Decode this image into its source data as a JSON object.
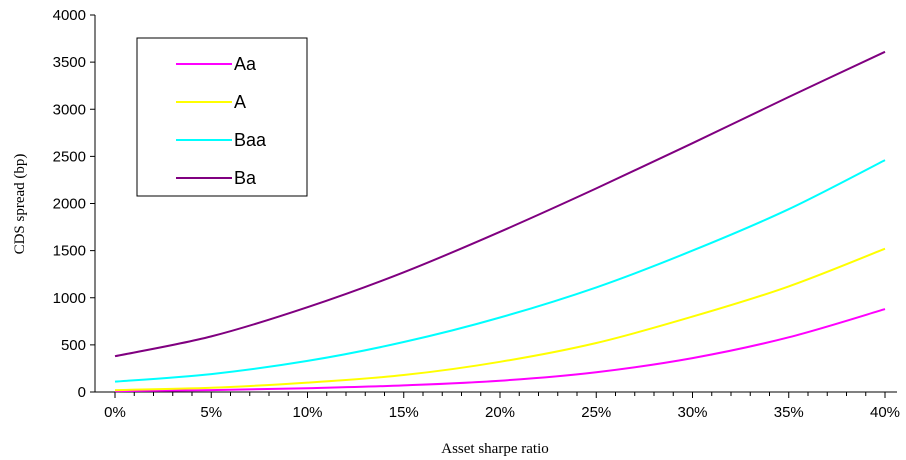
{
  "chart_data": {
    "type": "line",
    "xlabel": "Asset sharpe ratio",
    "ylabel": "CDS spread (bp)",
    "x": [
      0,
      0.05,
      0.1,
      0.15,
      0.2,
      0.25,
      0.3,
      0.35,
      0.4
    ],
    "x_tick_labels": [
      "0%",
      "5%",
      "10%",
      "15%",
      "20%",
      "25%",
      "30%",
      "35%",
      "40%"
    ],
    "xlim": [
      0,
      0.4
    ],
    "ylim": [
      0,
      4000
    ],
    "y_ticks": [
      0,
      500,
      1000,
      1500,
      2000,
      2500,
      3000,
      3500,
      4000
    ],
    "y_tick_labels": [
      "0",
      "500",
      "1000",
      "1500",
      "2000",
      "2500",
      "3000",
      "3500",
      "4000"
    ],
    "grid": false,
    "legend_position": "top-left",
    "series": [
      {
        "name": "Aa",
        "color": "#ff00ff",
        "values": [
          10,
          20,
          40,
          70,
          120,
          210,
          360,
          580,
          880
        ]
      },
      {
        "name": "A",
        "color": "#ffff00",
        "values": [
          20,
          45,
          100,
          180,
          320,
          520,
          800,
          1120,
          1520
        ]
      },
      {
        "name": "Baa",
        "color": "#00ffff",
        "values": [
          110,
          190,
          330,
          530,
          790,
          1110,
          1500,
          1940,
          2460
        ]
      },
      {
        "name": "Ba",
        "color": "#800080",
        "values": [
          380,
          590,
          900,
          1270,
          1700,
          2160,
          2640,
          3130,
          3610
        ]
      }
    ]
  }
}
